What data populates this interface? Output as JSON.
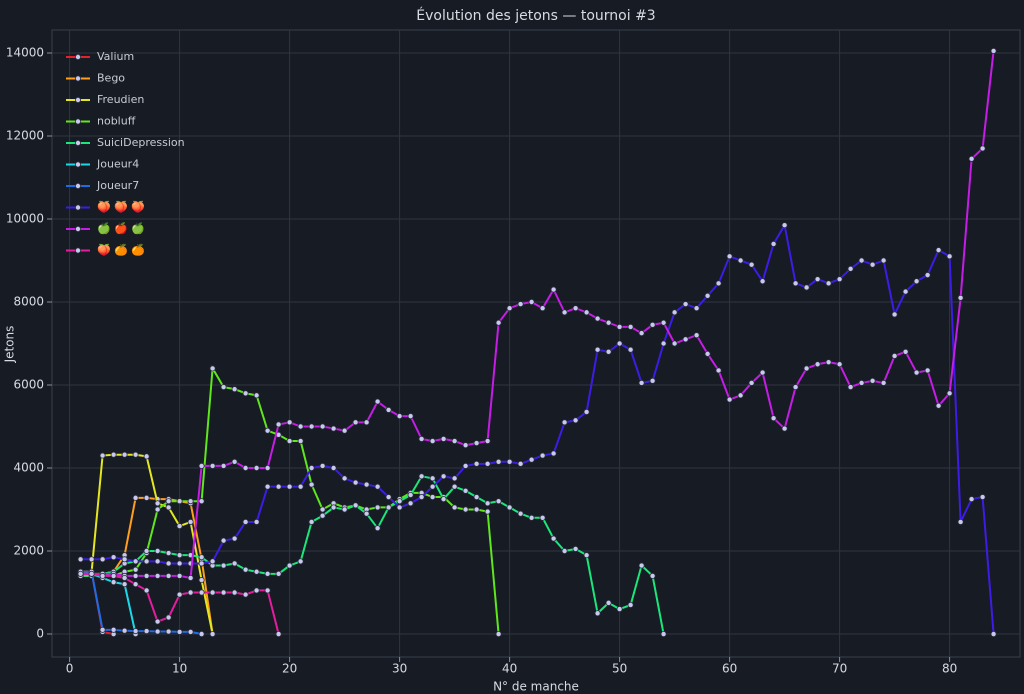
{
  "chart_data": {
    "type": "line",
    "title": "Évolution des jetons — tournoi #3",
    "x_label": "N° de manche",
    "y_label": "Jetons",
    "xlim": [
      -1.6,
      86.4
    ],
    "ylim": [
      -554,
      14554
    ],
    "xticks": [
      0,
      10,
      20,
      30,
      40,
      50,
      60,
      70,
      80
    ],
    "yticks": [
      0,
      2000,
      4000,
      6000,
      8000,
      10000,
      12000,
      14000
    ],
    "grid": true,
    "legend": "upper left",
    "series": [
      {
        "name": "Valium",
        "color": "#e8202a",
        "x": [
          1,
          2,
          3,
          4
        ],
        "values": [
          1500,
          1500,
          50,
          0
        ]
      },
      {
        "name": "Bego",
        "color": "#ff9f1c",
        "x": [
          1,
          2,
          3,
          4,
          5,
          6,
          7,
          8,
          9,
          10,
          11,
          12,
          13
        ],
        "values": [
          1400,
          1400,
          1450,
          1500,
          1900,
          3280,
          3280,
          3250,
          3250,
          3200,
          3150,
          1800,
          0
        ]
      },
      {
        "name": "Freudien",
        "color": "#e4e620",
        "x": [
          1,
          2,
          3,
          4,
          5,
          6,
          7,
          8,
          9,
          10,
          11,
          12,
          13
        ],
        "values": [
          1500,
          1500,
          4300,
          4320,
          4320,
          4320,
          4280,
          3150,
          3050,
          2600,
          2700,
          1300,
          0
        ]
      },
      {
        "name": "nobluff",
        "color": "#5fe61c",
        "x": [
          1,
          2,
          3,
          4,
          5,
          6,
          7,
          8,
          9,
          10,
          11,
          12,
          13,
          14,
          15,
          16,
          17,
          18,
          19,
          20,
          21,
          22,
          23,
          24,
          25,
          26,
          27,
          28,
          29,
          30,
          31,
          32,
          33,
          34,
          35,
          36,
          37,
          38,
          39
        ],
        "values": [
          1450,
          1450,
          1450,
          1400,
          1500,
          1550,
          1950,
          3000,
          3200,
          3200,
          3200,
          3200,
          6400,
          5950,
          5900,
          5800,
          5750,
          4900,
          4800,
          4650,
          4650,
          3600,
          3000,
          3150,
          3050,
          3100,
          3000,
          3050,
          3050,
          3250,
          3400,
          3400,
          3300,
          3300,
          3050,
          3000,
          3000,
          2950,
          0
        ]
      },
      {
        "name": "SuiciDepression",
        "color": "#1be67a",
        "x": [
          1,
          2,
          3,
          4,
          5,
          6,
          7,
          8,
          9,
          10,
          11,
          12,
          13,
          14,
          15,
          16,
          17,
          18,
          19,
          20,
          21,
          22,
          23,
          24,
          25,
          26,
          27,
          28,
          29,
          30,
          31,
          32,
          33,
          34,
          35,
          36,
          37,
          38,
          39,
          40,
          41,
          42,
          43,
          44,
          45,
          46,
          47,
          48,
          49,
          50,
          51,
          52,
          53,
          54
        ],
        "values": [
          1400,
          1400,
          1450,
          1500,
          1700,
          1750,
          2000,
          2000,
          1950,
          1900,
          1900,
          1850,
          1650,
          1650,
          1700,
          1550,
          1500,
          1450,
          1450,
          1650,
          1750,
          2700,
          2850,
          3050,
          3000,
          3100,
          2900,
          2550,
          3050,
          3200,
          3350,
          3800,
          3750,
          3250,
          3550,
          3450,
          3300,
          3150,
          3200,
          3050,
          2900,
          2800,
          2800,
          2300,
          2000,
          2050,
          1900,
          500,
          750,
          600,
          700,
          1650,
          1400,
          0
        ]
      },
      {
        "name": "Joueur4",
        "color": "#1cd8e6",
        "x": [
          1,
          2,
          3,
          4,
          5,
          6
        ],
        "values": [
          1400,
          1450,
          1350,
          1250,
          1200,
          0
        ]
      },
      {
        "name": "Joueur7",
        "color": "#1e6be6",
        "x": [
          1,
          2,
          3,
          4,
          5,
          6,
          7,
          8,
          9,
          10,
          11,
          12
        ],
        "values": [
          1500,
          1500,
          100,
          100,
          80,
          70,
          70,
          60,
          60,
          50,
          50,
          0
        ]
      },
      {
        "name": "🍑 🍑 🍑",
        "color": "#3d1ce6",
        "x": [
          1,
          2,
          3,
          4,
          5,
          6,
          7,
          8,
          9,
          10,
          11,
          12,
          13,
          14,
          15,
          16,
          17,
          18,
          19,
          20,
          21,
          22,
          23,
          24,
          25,
          26,
          27,
          28,
          29,
          30,
          31,
          32,
          33,
          34,
          35,
          36,
          37,
          38,
          39,
          40,
          41,
          42,
          43,
          44,
          45,
          46,
          47,
          48,
          49,
          50,
          51,
          52,
          53,
          54,
          55,
          56,
          57,
          58,
          59,
          60,
          61,
          62,
          63,
          64,
          65,
          66,
          67,
          68,
          69,
          70,
          71,
          72,
          73,
          74,
          75,
          76,
          77,
          78,
          79,
          80,
          81,
          82,
          83,
          84
        ],
        "values": [
          1800,
          1800,
          1800,
          1850,
          1800,
          1750,
          1750,
          1750,
          1700,
          1700,
          1700,
          1700,
          1750,
          2250,
          2300,
          2700,
          2700,
          3550,
          3550,
          3550,
          3550,
          4000,
          4050,
          4000,
          3750,
          3650,
          3600,
          3550,
          3300,
          3050,
          3150,
          3300,
          3550,
          3800,
          3750,
          4050,
          4100,
          4100,
          4150,
          4150,
          4100,
          4200,
          4300,
          4350,
          5100,
          5150,
          5350,
          6850,
          6800,
          7000,
          6850,
          6050,
          6100,
          7000,
          7750,
          7950,
          7850,
          8150,
          8450,
          9100,
          9000,
          8900,
          8500,
          9400,
          9850,
          8450,
          8350,
          8550,
          8450,
          8550,
          8800,
          9000,
          8900,
          9000,
          7700,
          8250,
          8500,
          8650,
          9250,
          9100,
          2700,
          3250,
          3300,
          0
        ]
      },
      {
        "name": "🍏 🍎 🍏",
        "color": "#c51ce6",
        "x": [
          1,
          2,
          3,
          4,
          5,
          6,
          7,
          8,
          9,
          10,
          11,
          12,
          13,
          14,
          15,
          16,
          17,
          18,
          19,
          20,
          21,
          22,
          23,
          24,
          25,
          26,
          27,
          28,
          29,
          30,
          31,
          32,
          33,
          34,
          35,
          36,
          37,
          38,
          39,
          40,
          41,
          42,
          43,
          44,
          45,
          46,
          47,
          48,
          49,
          50,
          51,
          52,
          53,
          54,
          55,
          56,
          57,
          58,
          59,
          60,
          61,
          62,
          63,
          64,
          65,
          66,
          67,
          68,
          69,
          70,
          71,
          72,
          73,
          74,
          75,
          76,
          77,
          78,
          79,
          80,
          81,
          82,
          83,
          84
        ],
        "values": [
          1450,
          1450,
          1450,
          1450,
          1400,
          1400,
          1400,
          1400,
          1400,
          1400,
          1350,
          4050,
          4050,
          4050,
          4150,
          4000,
          4000,
          4000,
          5050,
          5100,
          5000,
          5000,
          5000,
          4950,
          4900,
          5100,
          5100,
          5600,
          5400,
          5250,
          5250,
          4700,
          4650,
          4700,
          4650,
          4550,
          4600,
          4650,
          7500,
          7850,
          7950,
          8000,
          7850,
          8300,
          7750,
          7850,
          7750,
          7600,
          7500,
          7400,
          7400,
          7250,
          7450,
          7500,
          7000,
          7100,
          7200,
          6750,
          6350,
          5650,
          5750,
          6050,
          6300,
          5200,
          4950,
          5950,
          6400,
          6500,
          6550,
          6500,
          5950,
          6050,
          6100,
          6050,
          6700,
          6800,
          6300,
          6350,
          5500,
          5800,
          8100,
          11450,
          11700,
          14050
        ]
      },
      {
        "name": "🍑 🍊 🍊",
        "color": "#e61c9e",
        "x": [
          1,
          2,
          3,
          4,
          5,
          6,
          7,
          8,
          9,
          10,
          11,
          12,
          13,
          14,
          15,
          16,
          17,
          18,
          19
        ],
        "values": [
          1450,
          1450,
          1400,
          1400,
          1350,
          1200,
          1050,
          300,
          400,
          950,
          1000,
          1000,
          1000,
          1000,
          1000,
          950,
          1050,
          1050,
          0
        ]
      }
    ]
  }
}
